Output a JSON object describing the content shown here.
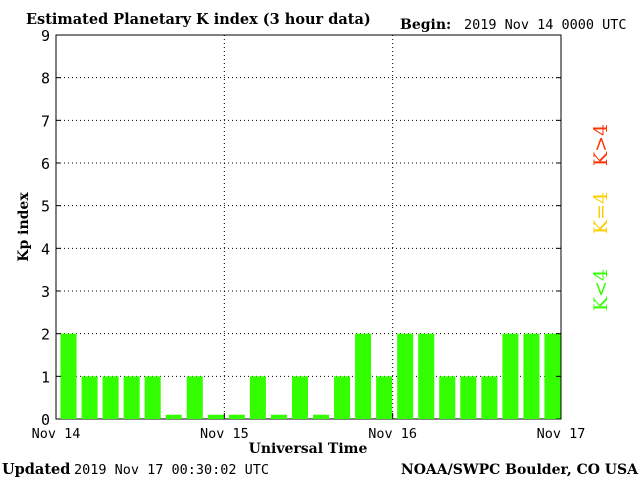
{
  "chart_data": {
    "type": "bar",
    "title": "Estimated Planetary K index (3 hour data)",
    "begin_label": "Begin:",
    "begin_value": "2019 Nov 14 0000 UTC",
    "xlabel": "Universal Time",
    "ylabel": "Kp index",
    "ylim": [
      0,
      9
    ],
    "y_ticks": [
      "0",
      "1",
      "2",
      "3",
      "4",
      "5",
      "6",
      "7",
      "8",
      "9"
    ],
    "x_ticks": [
      "Nov 14",
      "Nov 15",
      "Nov 16",
      "Nov 17"
    ],
    "values": [
      2,
      1,
      1,
      1,
      1,
      0.1,
      1,
      0.1,
      0.1,
      1,
      0.1,
      1,
      0.1,
      1,
      2,
      1,
      2,
      2,
      1,
      1,
      1,
      2,
      2,
      2
    ],
    "bar_color": "#33ff00",
    "grid": "dotted, per day and per integer Kp",
    "legend": [
      {
        "label": "K<4",
        "color": "#33ff00"
      },
      {
        "label": "K=4",
        "color": "#ffcc00"
      },
      {
        "label": "K>4",
        "color": "#ff3300"
      }
    ]
  },
  "footer": {
    "updated_label": "Updated",
    "updated_value": "2019 Nov 17 00:30:02 UTC",
    "credit": "NOAA/SWPC Boulder, CO USA"
  }
}
